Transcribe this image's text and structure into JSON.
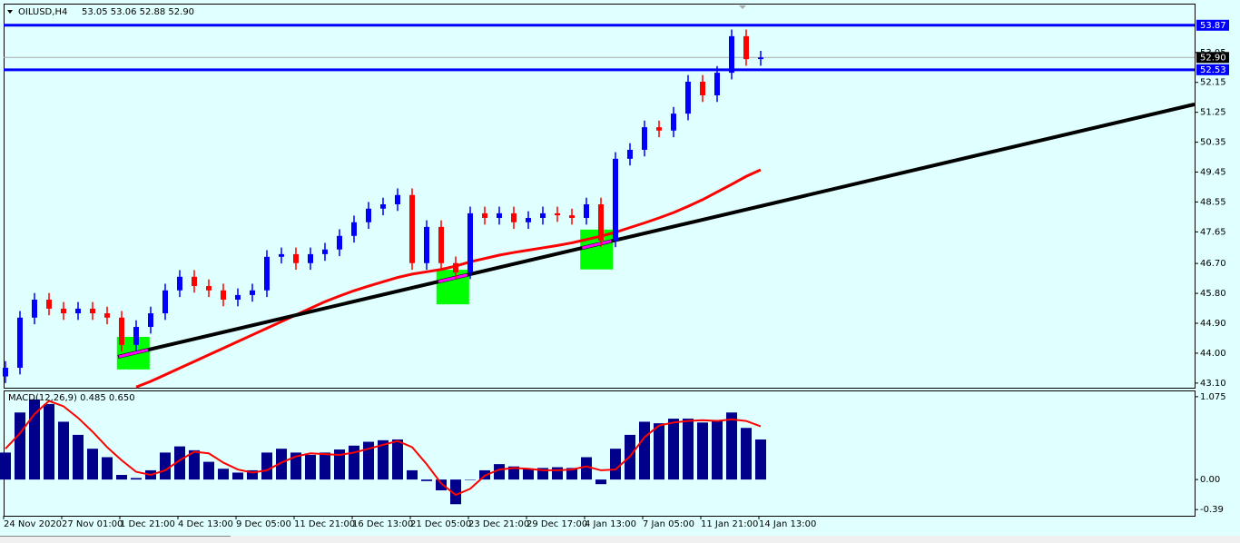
{
  "chart_data": [
    {
      "type": "candlestick",
      "title": "OILUSD,H4",
      "quote": "53.05 53.06 52.88 52.90",
      "categories": [
        "24 Nov 2020",
        null,
        null,
        null,
        "27 Nov 01:00",
        null,
        null,
        null,
        "1 Dec 21:00",
        null,
        null,
        null,
        "4 Dec 13:00",
        null,
        null,
        null,
        "9 Dec 05:00",
        null,
        null,
        null,
        "11 Dec 21:00",
        null,
        null,
        null,
        "16 Dec 13:00",
        null,
        null,
        null,
        "21 Dec 05:00",
        null,
        null,
        null,
        "23 Dec 21:00",
        null,
        null,
        null,
        "29 Dec 17:00",
        null,
        null,
        null,
        "4 Jan 13:00",
        null,
        null,
        null,
        "7 Jan 05:00",
        null,
        null,
        null,
        "11 Jan 21:00",
        null,
        null,
        null,
        "14 Jan 13:00"
      ],
      "open": [
        43.3,
        43.56,
        45.07,
        45.61,
        45.34,
        45.2,
        45.34,
        45.2,
        45.07,
        44.25,
        44.79,
        45.2,
        45.89,
        46.3,
        46.02,
        45.89,
        45.61,
        45.75,
        45.89,
        46.9,
        46.98,
        46.71,
        46.98,
        47.12,
        47.53,
        47.94,
        48.35,
        48.48,
        48.76,
        46.71,
        47.8,
        46.71,
        46.43,
        48.21,
        48.07,
        48.21,
        47.94,
        48.07,
        48.21,
        48.15,
        48.07,
        48.48,
        47.39,
        49.85,
        50.12,
        50.8,
        50.7,
        51.21,
        52.17,
        51.76,
        52.44,
        53.54,
        52.85
      ],
      "high": [
        43.76,
        45.27,
        45.81,
        45.81,
        45.54,
        45.54,
        45.54,
        45.4,
        45.27,
        44.99,
        45.4,
        46.09,
        46.5,
        46.5,
        46.22,
        46.09,
        45.95,
        46.09,
        47.1,
        47.18,
        47.18,
        47.18,
        47.32,
        47.73,
        48.14,
        48.55,
        48.68,
        48.96,
        48.96,
        48.0,
        48.0,
        46.91,
        48.41,
        48.41,
        48.41,
        48.41,
        48.27,
        48.41,
        48.41,
        48.35,
        48.68,
        48.68,
        50.05,
        50.32,
        51.0,
        51.0,
        51.41,
        52.37,
        52.37,
        52.64,
        53.74,
        53.74,
        53.1
      ],
      "low": [
        43.1,
        43.36,
        44.87,
        45.14,
        45.0,
        45.0,
        45.0,
        44.87,
        44.05,
        44.05,
        44.59,
        45.0,
        45.69,
        45.82,
        45.69,
        45.41,
        45.41,
        45.55,
        45.69,
        46.7,
        46.51,
        46.51,
        46.78,
        46.92,
        47.33,
        47.74,
        48.15,
        48.28,
        46.51,
        46.51,
        46.51,
        46.23,
        46.23,
        47.87,
        47.87,
        47.74,
        47.74,
        47.87,
        47.95,
        47.87,
        47.87,
        47.19,
        47.19,
        49.65,
        49.92,
        50.5,
        50.5,
        51.01,
        51.56,
        51.56,
        52.24,
        52.65,
        52.65
      ],
      "close": [
        43.56,
        45.07,
        45.61,
        45.34,
        45.2,
        45.34,
        45.2,
        45.07,
        44.25,
        44.79,
        45.2,
        45.89,
        46.3,
        46.02,
        45.89,
        45.61,
        45.75,
        45.89,
        46.9,
        46.98,
        46.71,
        46.98,
        47.12,
        47.53,
        47.94,
        48.35,
        48.48,
        48.76,
        46.71,
        47.8,
        46.71,
        46.43,
        48.21,
        48.07,
        48.21,
        47.94,
        48.07,
        48.21,
        48.15,
        48.07,
        48.48,
        47.39,
        49.85,
        50.12,
        50.8,
        50.7,
        51.21,
        52.17,
        51.76,
        52.44,
        53.54,
        52.85,
        52.9
      ],
      "colors": {
        "up": "#0000ff",
        "down": "#ff0000"
      },
      "ma": {
        "color": "#ff0000",
        "values": [
          null,
          null,
          null,
          null,
          null,
          null,
          null,
          null,
          null,
          42.98,
          43.15,
          43.35,
          43.55,
          43.75,
          43.95,
          44.15,
          44.35,
          44.55,
          44.75,
          44.95,
          45.15,
          45.35,
          45.55,
          45.72,
          45.88,
          46.02,
          46.15,
          46.28,
          46.38,
          46.45,
          46.52,
          46.62,
          46.75,
          46.85,
          46.95,
          47.03,
          47.1,
          47.17,
          47.24,
          47.32,
          47.42,
          47.52,
          47.64,
          47.78,
          47.92,
          48.07,
          48.23,
          48.42,
          48.62,
          48.85,
          49.08,
          49.32,
          49.52
        ]
      },
      "trendline": {
        "color": "#000000",
        "x": [
          7.75,
          81.875
        ],
        "values": [
          43.89,
          51.49
        ]
      },
      "zones": [
        {
          "x": 8.8,
          "top": 44.49,
          "bottom": 43.51
        },
        {
          "x": 30.8,
          "top": 46.51,
          "bottom": 45.47
        },
        {
          "x": 40.7,
          "top": 47.72,
          "bottom": 46.52
        }
      ],
      "zone_color": "#00ff00",
      "zone_mark_color": "#ff00ff",
      "levels": [
        {
          "value": 53.87,
          "color": "#0000ff"
        },
        {
          "value": 52.53,
          "color": "#0000ff"
        }
      ],
      "last_price": {
        "value": 52.9,
        "label": "52.90"
      },
      "ylim": [
        42.96,
        54.52
      ],
      "yticks": [
        {
          "value": 43.1,
          "label": "43.10"
        },
        {
          "value": 44,
          "label": "44.00"
        },
        {
          "value": 44.9,
          "label": "44.90"
        },
        {
          "value": 45.8,
          "label": "45.80"
        },
        {
          "value": 46.7,
          "label": "46.70"
        },
        47.65,
        48.55,
        49.45,
        50.35,
        51.25,
        52.15,
        53.05
      ]
    },
    {
      "type": "macd",
      "title": "MACD(12,26,9) 0.485 0.650",
      "series": [
        {
          "color": "#00008b",
          "values": [
            0.35,
            0.87,
            1.04,
            0.98,
            0.75,
            0.58,
            0.4,
            0.29,
            0.06,
            0.02,
            0.12,
            0.35,
            0.43,
            0.38,
            0.23,
            0.14,
            0.09,
            0.12,
            0.35,
            0.4,
            0.35,
            0.32,
            0.35,
            0.39,
            0.44,
            0.49,
            0.51,
            0.52,
            0.12,
            -0.02,
            -0.14,
            -0.32,
            0,
            0.12,
            0.2,
            0.17,
            0.14,
            0.15,
            0.16,
            0.15,
            0.29,
            -0.06,
            0.4,
            0.58,
            0.75,
            0.73,
            0.79,
            0.79,
            0.74,
            0.77,
            0.87,
            0.67,
            0.52
          ]
        },
        {
          "color": "#ff0000",
          "values": [
            0.4,
            0.6,
            0.85,
            1.02,
            0.95,
            0.8,
            0.62,
            0.42,
            0.25,
            0.1,
            0.06,
            0.12,
            0.25,
            0.36,
            0.34,
            0.22,
            0.13,
            0.09,
            0.12,
            0.22,
            0.3,
            0.34,
            0.33,
            0.32,
            0.35,
            0.4,
            0.45,
            0.5,
            0.42,
            0.2,
            -0.05,
            -0.2,
            -0.12,
            0.05,
            0.13,
            0.15,
            0.14,
            0.12,
            0.12,
            0.13,
            0.17,
            0.12,
            0.13,
            0.3,
            0.55,
            0.7,
            0.74,
            0.76,
            0.77,
            0.76,
            0.78,
            0.76,
            0.69
          ]
        }
      ],
      "ylim": [
        -0.47,
        1.156
      ],
      "yticks": [
        1.075,
        {
          "value": 0,
          "label": "0.00"
        },
        {
          "value": -0.39,
          "label": "-0.39"
        }
      ]
    }
  ]
}
